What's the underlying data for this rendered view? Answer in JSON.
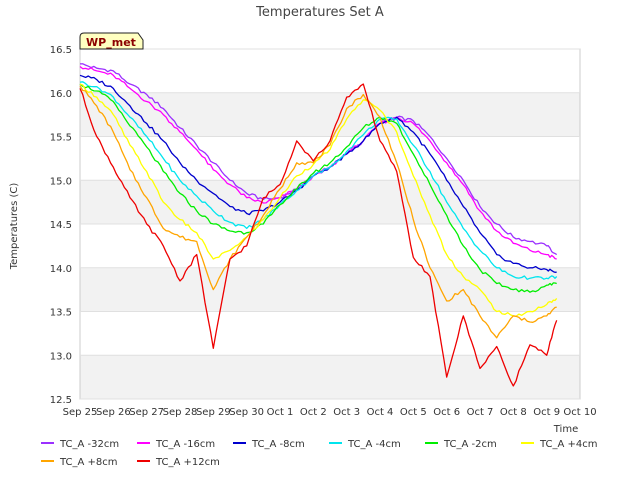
{
  "chart_data": {
    "type": "line",
    "title": "Temperatures Set A",
    "xlabel": "Time",
    "ylabel": "Temperatures (C)",
    "ylim": [
      12.5,
      16.5
    ],
    "yticks": [
      "12.5",
      "13.0",
      "13.5",
      "14.0",
      "14.5",
      "15.0",
      "15.5",
      "16.0",
      "16.5"
    ],
    "xlim": [
      "Sep 25",
      "Oct 10"
    ],
    "xticks": [
      "Sep 25",
      "Sep 26",
      "Sep 27",
      "Sep 28",
      "Sep 29",
      "Sep 30",
      "Oct 1",
      "Oct 2",
      "Oct 3",
      "Oct 4",
      "Oct 5",
      "Oct 6",
      "Oct 7",
      "Oct 8",
      "Oct 9",
      "Oct 10"
    ],
    "x_dates": [
      "Sep 25",
      "Sep 25.5",
      "Sep 26",
      "Sep 26.5",
      "Sep 27",
      "Sep 27.5",
      "Sep 28",
      "Sep 28.5",
      "Sep 29",
      "Sep 29.5",
      "Sep 30",
      "Sep 30.5",
      "Oct 1",
      "Oct 1.5",
      "Oct 2",
      "Oct 2.5",
      "Oct 3",
      "Oct 3.5",
      "Oct 4",
      "Oct 4.5",
      "Oct 5",
      "Oct 5.5",
      "Oct 6",
      "Oct 6.5",
      "Oct 7",
      "Oct 7.5",
      "Oct 8",
      "Oct 8.5",
      "Oct 9",
      "Oct 9.3"
    ],
    "banded_background": true,
    "legend_position": "bottom",
    "badge": "WP_met",
    "series": [
      {
        "name": "TC_A -32cm",
        "color": "#9b30ff",
        "values": [
          16.33,
          16.28,
          16.25,
          16.1,
          15.98,
          15.82,
          15.6,
          15.4,
          15.2,
          15.0,
          14.85,
          14.78,
          14.8,
          14.9,
          15.05,
          15.15,
          15.3,
          15.45,
          15.65,
          15.72,
          15.68,
          15.5,
          15.25,
          15.0,
          14.7,
          14.5,
          14.35,
          14.3,
          14.25,
          14.15
        ]
      },
      {
        "name": "TC_A -16cm",
        "color": "#ff00ff",
        "values": [
          16.3,
          16.25,
          16.2,
          16.05,
          15.9,
          15.75,
          15.55,
          15.35,
          15.12,
          14.95,
          14.8,
          14.74,
          14.8,
          14.9,
          15.05,
          15.15,
          15.3,
          15.45,
          15.65,
          15.72,
          15.65,
          15.45,
          15.2,
          14.95,
          14.65,
          14.42,
          14.28,
          14.2,
          14.15,
          14.1
        ]
      },
      {
        "name": "TC_A -8cm",
        "color": "#0000cd",
        "values": [
          16.2,
          16.15,
          16.05,
          15.85,
          15.65,
          15.45,
          15.2,
          15.0,
          14.85,
          14.7,
          14.62,
          14.65,
          14.75,
          14.88,
          15.05,
          15.15,
          15.3,
          15.45,
          15.65,
          15.72,
          15.55,
          15.3,
          15.0,
          14.7,
          14.4,
          14.15,
          14.05,
          14.0,
          13.98,
          13.95
        ]
      },
      {
        "name": "TC_A -4cm",
        "color": "#00e5ee",
        "values": [
          16.12,
          16.07,
          15.95,
          15.72,
          15.5,
          15.25,
          15.0,
          14.82,
          14.65,
          14.52,
          14.45,
          14.55,
          14.72,
          14.88,
          15.05,
          15.15,
          15.33,
          15.52,
          15.7,
          15.7,
          15.4,
          15.1,
          14.75,
          14.45,
          14.2,
          14.0,
          13.9,
          13.88,
          13.88,
          13.9
        ]
      },
      {
        "name": "TC_A -2cm",
        "color": "#00ee00",
        "values": [
          16.1,
          16.02,
          15.9,
          15.62,
          15.38,
          15.1,
          14.85,
          14.65,
          14.5,
          14.42,
          14.4,
          14.5,
          14.72,
          14.9,
          15.08,
          15.2,
          15.38,
          15.6,
          15.72,
          15.65,
          15.3,
          14.95,
          14.6,
          14.25,
          13.98,
          13.82,
          13.75,
          13.72,
          13.8,
          13.82
        ]
      },
      {
        "name": "TC_A +4cm",
        "color": "#ffff00",
        "values": [
          16.1,
          15.95,
          15.75,
          15.4,
          15.1,
          14.75,
          14.55,
          14.4,
          14.1,
          14.2,
          14.35,
          14.55,
          14.8,
          15.05,
          15.18,
          15.35,
          15.7,
          15.92,
          15.8,
          15.55,
          15.05,
          14.6,
          14.15,
          13.9,
          13.75,
          13.5,
          13.45,
          13.5,
          13.58,
          13.65
        ]
      },
      {
        "name": "TC_A +8cm",
        "color": "#ffa500",
        "values": [
          16.08,
          15.85,
          15.55,
          15.12,
          14.8,
          14.45,
          14.35,
          14.3,
          13.75,
          14.1,
          14.35,
          14.6,
          14.9,
          15.2,
          15.2,
          15.4,
          15.82,
          15.98,
          15.72,
          15.2,
          14.55,
          14.0,
          13.62,
          13.75,
          13.45,
          13.2,
          13.45,
          13.38,
          13.45,
          13.55
        ]
      },
      {
        "name": "TC_A +12cm",
        "color": "#ee0000",
        "values": [
          16.05,
          15.5,
          15.15,
          14.8,
          14.5,
          14.25,
          13.85,
          14.15,
          13.08,
          14.1,
          14.25,
          14.8,
          14.95,
          15.45,
          15.22,
          15.45,
          15.95,
          16.1,
          15.45,
          15.1,
          14.12,
          13.9,
          12.75,
          13.45,
          12.85,
          13.1,
          12.65,
          13.12,
          13.0,
          13.4
        ]
      }
    ]
  }
}
